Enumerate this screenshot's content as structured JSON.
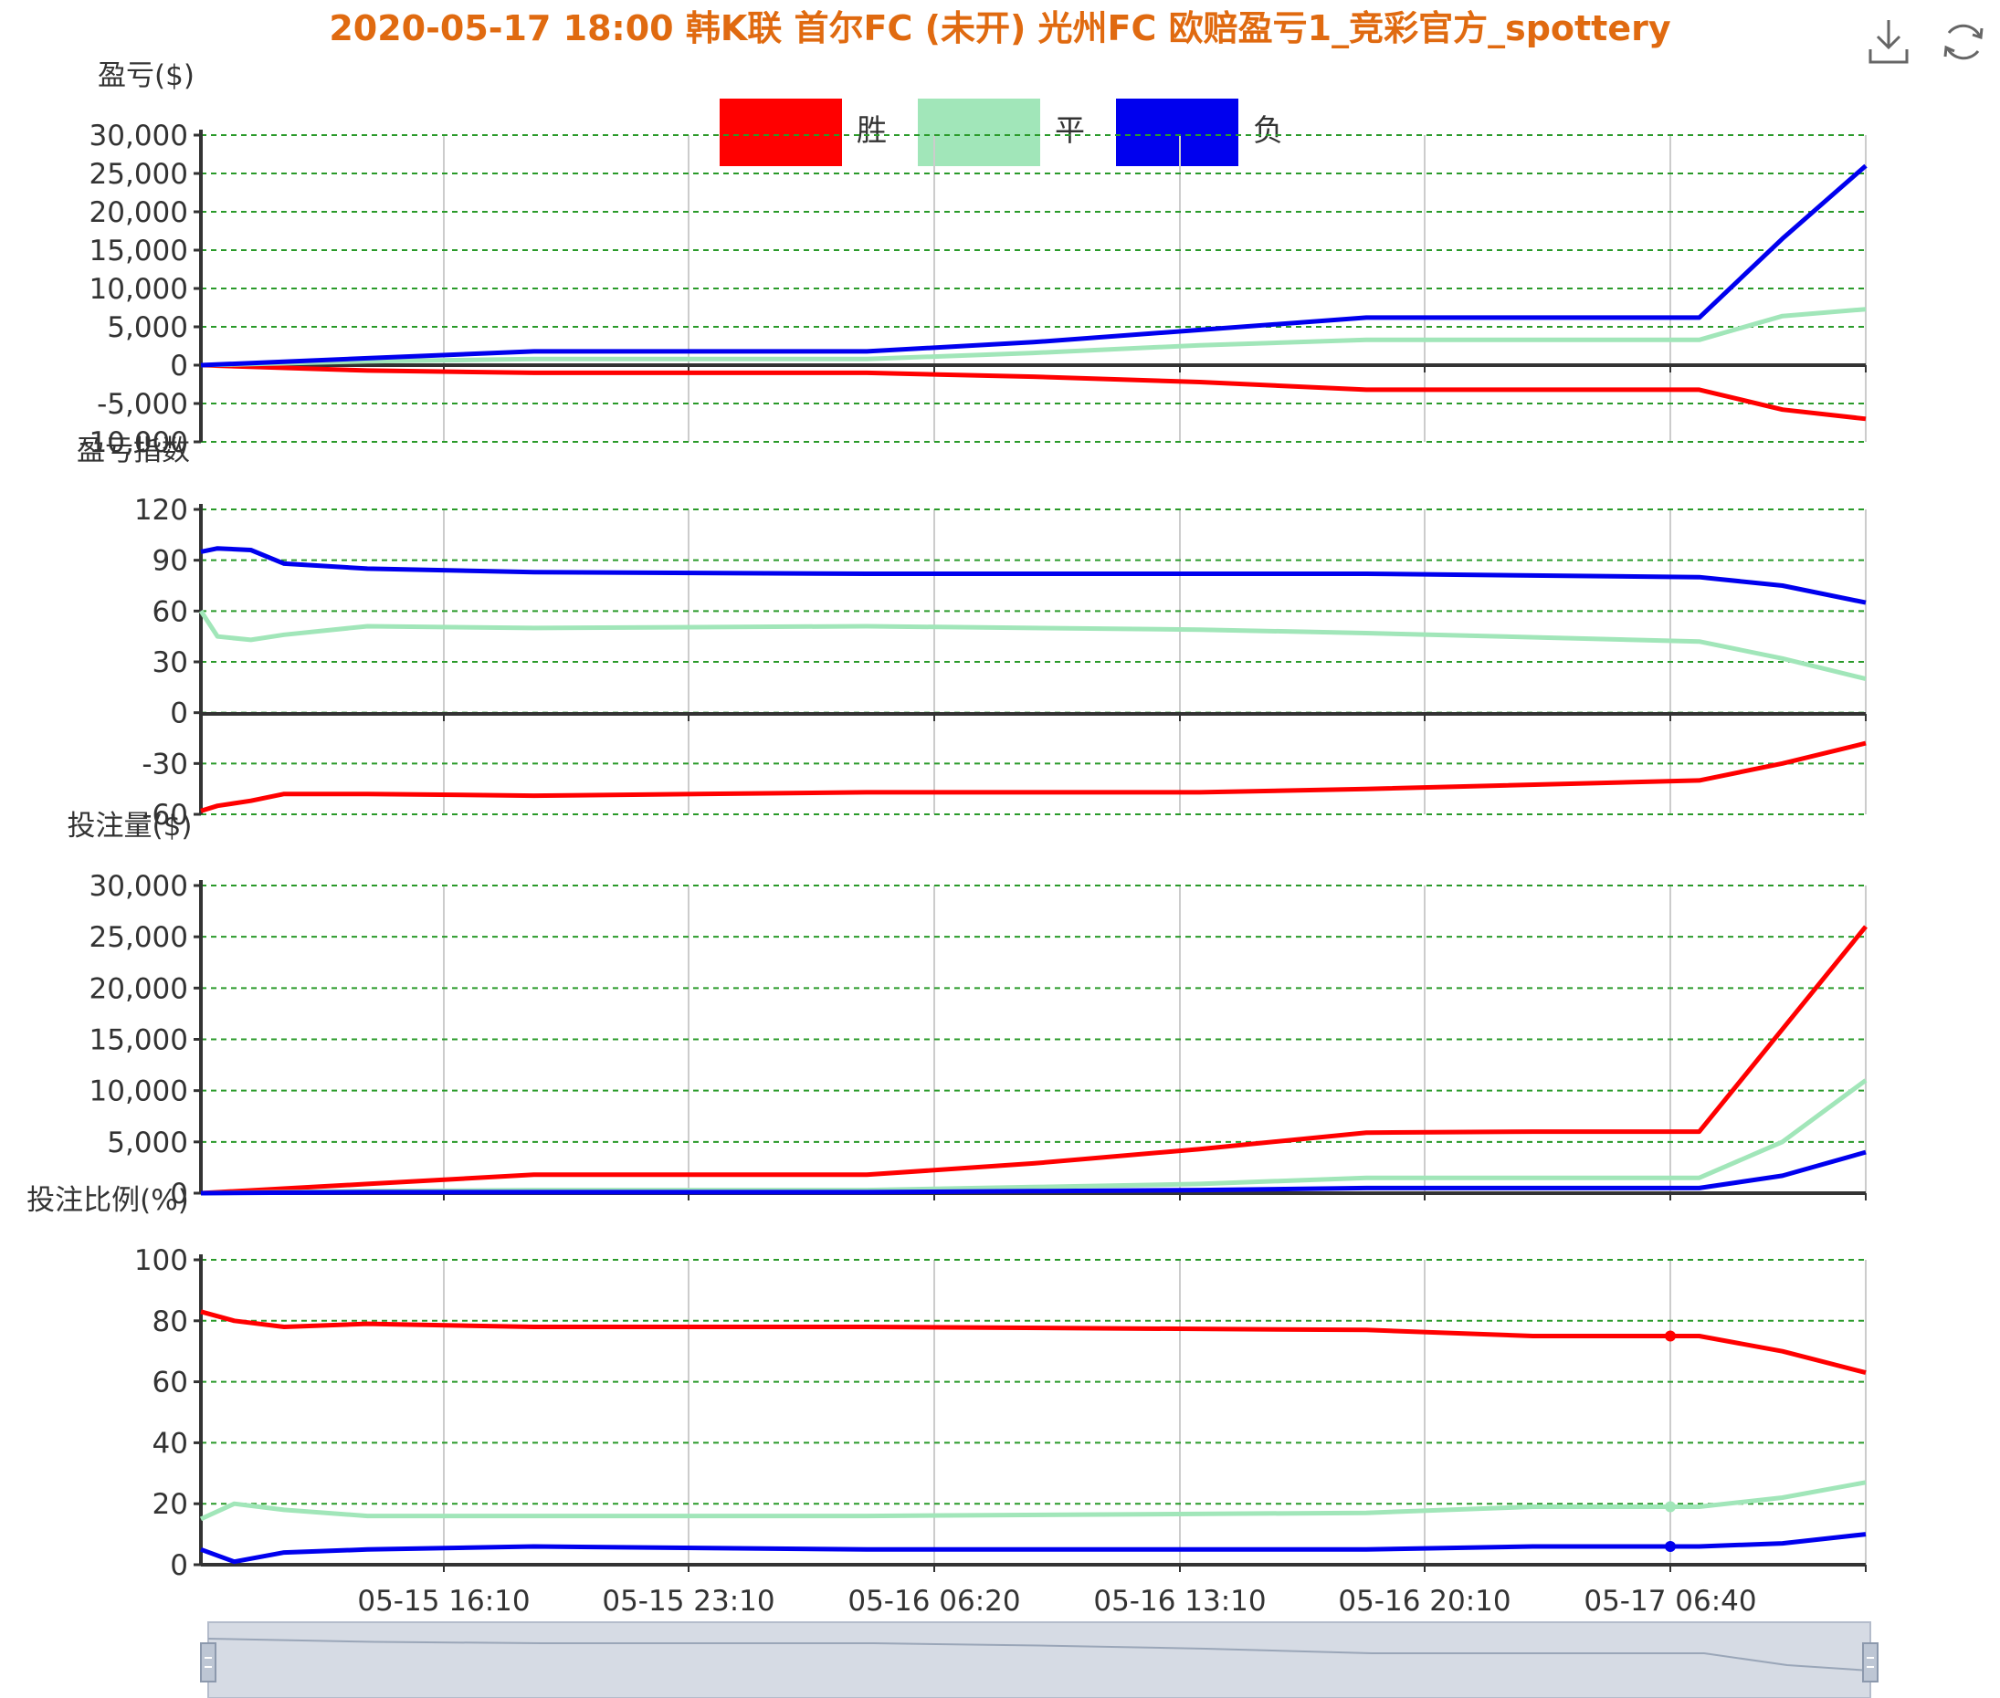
{
  "title": "2020-05-17 18:00 韩K联 首尔FC (未开) 光州FC 欧赔盈亏1_竞彩官方_spottery",
  "toolbox": {
    "download_icon": "download-icon",
    "refresh_icon": "refresh-icon"
  },
  "colors": {
    "win": "#ff0000",
    "draw": "#a1e6b9",
    "loss": "#0000ee",
    "grid": "#2a9a2a",
    "axis": "#333333",
    "vgrid": "#cccccc"
  },
  "legend": [
    "胜",
    "平",
    "负"
  ],
  "chart_data": [
    {
      "type": "line",
      "title": "盈亏($)",
      "ylim": [
        -10000,
        30000
      ],
      "yticks": [
        "30,000",
        "25,000",
        "20,000",
        "15,000",
        "10,000",
        "5,000",
        "0",
        "-5,000",
        "-10,000"
      ],
      "x": [
        0,
        10,
        20,
        30,
        40,
        50,
        60,
        70,
        80,
        90,
        95,
        100
      ],
      "series": [
        {
          "name": "胜",
          "values": [
            0,
            -700,
            -1000,
            -1000,
            -1000,
            -1500,
            -2200,
            -3200,
            -3200,
            -3200,
            -5800,
            -7000
          ]
        },
        {
          "name": "平",
          "values": [
            0,
            500,
            800,
            800,
            800,
            1600,
            2600,
            3300,
            3300,
            3300,
            6400,
            7300
          ]
        },
        {
          "name": "负",
          "values": [
            0,
            900,
            1800,
            1800,
            1800,
            3000,
            4600,
            6200,
            6200,
            6200,
            16500,
            26000
          ]
        }
      ]
    },
    {
      "type": "line",
      "title": "盈亏指数",
      "ylim": [
        -60,
        120
      ],
      "yticks": [
        "120",
        "90",
        "60",
        "30",
        "0",
        "-30",
        "-60"
      ],
      "x": [
        0,
        1,
        3,
        5,
        10,
        20,
        40,
        60,
        70,
        90,
        95,
        100
      ],
      "series": [
        {
          "name": "胜",
          "values": [
            -58,
            -55,
            -52,
            -48,
            -48,
            -49,
            -47,
            -47,
            -45,
            -40,
            -30,
            -18
          ]
        },
        {
          "name": "平",
          "values": [
            60,
            45,
            43,
            46,
            51,
            50,
            51,
            49,
            47,
            42,
            32,
            20
          ]
        },
        {
          "name": "负",
          "values": [
            95,
            97,
            96,
            88,
            85,
            83,
            82,
            82,
            82,
            80,
            75,
            65
          ]
        }
      ]
    },
    {
      "type": "line",
      "title": "投注量($)",
      "ylim": [
        0,
        30000
      ],
      "yticks": [
        "30,000",
        "25,000",
        "20,000",
        "15,000",
        "10,000",
        "5,000",
        "0"
      ],
      "x": [
        0,
        10,
        20,
        30,
        40,
        50,
        60,
        70,
        80,
        90,
        95,
        100
      ],
      "series": [
        {
          "name": "胜",
          "values": [
            0,
            900,
            1800,
            1800,
            1800,
            2900,
            4300,
            5900,
            6000,
            6000,
            16000,
            26000
          ]
        },
        {
          "name": "平",
          "values": [
            0,
            200,
            300,
            300,
            300,
            600,
            900,
            1500,
            1500,
            1500,
            5000,
            11000
          ]
        },
        {
          "name": "负",
          "values": [
            0,
            100,
            100,
            100,
            100,
            200,
            300,
            500,
            500,
            500,
            1700,
            4000
          ]
        }
      ]
    },
    {
      "type": "line",
      "title": "投注比例(%)",
      "ylim": [
        0,
        100
      ],
      "yticks": [
        "100",
        "80",
        "60",
        "40",
        "20",
        "0"
      ],
      "x": [
        0,
        2,
        5,
        10,
        20,
        40,
        70,
        80,
        90,
        95,
        100
      ],
      "series": [
        {
          "name": "胜",
          "values": [
            83,
            80,
            78,
            79,
            78,
            78,
            77,
            75,
            75,
            70,
            63
          ]
        },
        {
          "name": "平",
          "values": [
            15,
            20,
            18,
            16,
            16,
            16,
            17,
            19,
            19,
            22,
            27
          ]
        },
        {
          "name": "负",
          "values": [
            5,
            1,
            4,
            5,
            6,
            5,
            5,
            6,
            6,
            7,
            10
          ]
        }
      ]
    }
  ],
  "xaxis_labels": [
    "05-15 16:10",
    "05-15 23:10",
    "05-16 06:20",
    "05-16 13:10",
    "05-16 20:10",
    "05-17 06:40"
  ]
}
